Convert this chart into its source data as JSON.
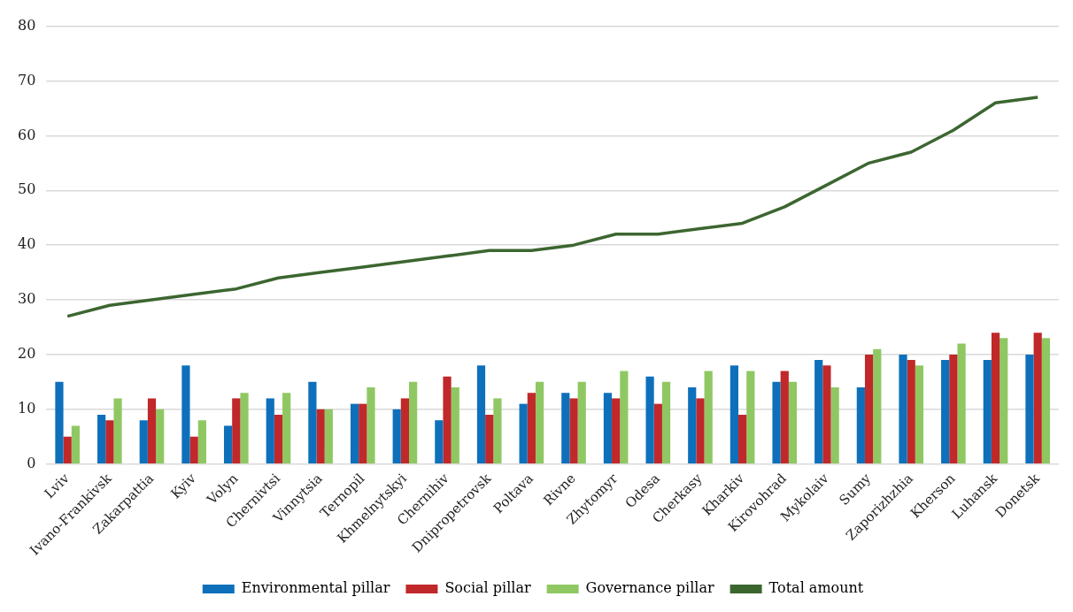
{
  "chart_data": {
    "type": "bar",
    "categories": [
      "Lviv",
      "Ivano-Frankivsk",
      "Zakarpattia",
      "Kyiv",
      "Volyn",
      "Chernivtsi",
      "Vinnytsia",
      "Ternopil",
      "Khmelnytskyi",
      "Chernihiv",
      "Dnipropetrovsk",
      "Poltava",
      "Rivne",
      "Zhytomyr",
      "Odesa",
      "Cherkasy",
      "Kharkiv",
      "Kirovohrad",
      "Mykolaiv",
      "Sumy",
      "Zaporizhzhia",
      "Kherson",
      "Luhansk",
      "Donetsk"
    ],
    "series": [
      {
        "name": "Environmental pillar",
        "color": "#0e70bb",
        "values": [
          15,
          9,
          8,
          18,
          7,
          12,
          15,
          11,
          10,
          8,
          18,
          11,
          13,
          13,
          16,
          14,
          18,
          15,
          19,
          14,
          20,
          19,
          19,
          20
        ]
      },
      {
        "name": "Social pillar",
        "color": "#c0282a",
        "values": [
          5,
          8,
          12,
          5,
          12,
          9,
          10,
          11,
          12,
          16,
          9,
          13,
          12,
          12,
          11,
          12,
          9,
          17,
          18,
          20,
          19,
          20,
          24,
          24
        ]
      },
      {
        "name": "Governance pillar",
        "color": "#8fc862",
        "values": [
          7,
          12,
          10,
          8,
          13,
          13,
          10,
          14,
          15,
          14,
          12,
          15,
          15,
          17,
          15,
          17,
          17,
          15,
          14,
          21,
          18,
          22,
          23,
          23
        ]
      },
      {
        "name": "Total amount",
        "type": "line",
        "color": "#3c6630",
        "marker": "none",
        "values": [
          27,
          29,
          30,
          31,
          32,
          34,
          35,
          36,
          37,
          38,
          39,
          39,
          40,
          42,
          42,
          43,
          44,
          47,
          51,
          55,
          57,
          61,
          66,
          67
        ]
      }
    ],
    "ylim": [
      0,
      80
    ],
    "yticks": [
      0,
      10,
      20,
      30,
      40,
      50,
      60,
      70,
      80
    ],
    "grid": "y",
    "legend": "bottom"
  }
}
